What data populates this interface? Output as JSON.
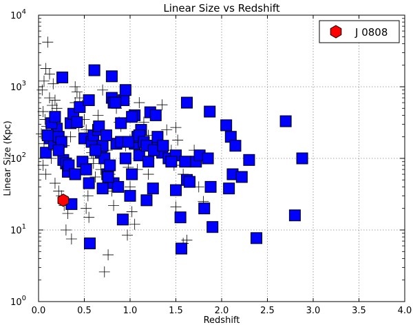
{
  "chart_data": {
    "type": "scatter",
    "title": "Linear Size vs Redshift",
    "xlabel": "Redshift",
    "ylabel": "Linear Size (Kpc)",
    "xlim": [
      0.0,
      4.0
    ],
    "ylim": [
      1,
      10000
    ],
    "yscale": "log",
    "grid": true,
    "legend_position": "top-right",
    "x_ticks": [
      "0.0",
      "0.5",
      "1.0",
      "1.5",
      "2.0",
      "2.5",
      "3.0",
      "3.5",
      "4.0"
    ],
    "y_ticks": [
      {
        "base": "10",
        "exp": "0"
      },
      {
        "base": "10",
        "exp": "1"
      },
      {
        "base": "10",
        "exp": "2"
      },
      {
        "base": "10",
        "exp": "3"
      },
      {
        "base": "10",
        "exp": "4"
      }
    ],
    "colors": {
      "squares": "#0000ff",
      "highlight": "#ff0000",
      "grid": "#888888"
    },
    "series": [
      {
        "name": "J 0808",
        "marker": "hexagon",
        "color": "#ff0000",
        "points": [
          [
            0.27,
            26
          ]
        ]
      },
      {
        "name": "blue squares",
        "marker": "square",
        "color": "#0000ff",
        "points": [
          [
            0.08,
            120
          ],
          [
            0.12,
            190
          ],
          [
            0.17,
            160
          ],
          [
            0.2,
            260
          ],
          [
            0.22,
            200
          ],
          [
            0.25,
            170
          ],
          [
            0.26,
            1350
          ],
          [
            0.27,
            95
          ],
          [
            0.3,
            85
          ],
          [
            0.32,
            65
          ],
          [
            0.33,
            80
          ],
          [
            0.35,
            310
          ],
          [
            0.36,
            23
          ],
          [
            0.38,
            420
          ],
          [
            0.4,
            60
          ],
          [
            0.45,
            520
          ],
          [
            0.48,
            90
          ],
          [
            0.5,
            190
          ],
          [
            0.52,
            70
          ],
          [
            0.55,
            650
          ],
          [
            0.55,
            45
          ],
          [
            0.56,
            6.5
          ],
          [
            0.58,
            170
          ],
          [
            0.6,
            210
          ],
          [
            0.61,
            1700
          ],
          [
            0.65,
            250
          ],
          [
            0.68,
            120
          ],
          [
            0.7,
            38
          ],
          [
            0.7,
            150
          ],
          [
            0.72,
            100
          ],
          [
            0.75,
            60
          ],
          [
            0.78,
            80
          ],
          [
            0.8,
            1400
          ],
          [
            0.8,
            700
          ],
          [
            0.82,
            600
          ],
          [
            0.82,
            45
          ],
          [
            0.85,
            160
          ],
          [
            0.87,
            40
          ],
          [
            0.9,
            310
          ],
          [
            0.92,
            14
          ],
          [
            0.93,
            650
          ],
          [
            0.95,
            900
          ],
          [
            0.95,
            100
          ],
          [
            1.0,
            30
          ],
          [
            1.02,
            60
          ],
          [
            1.05,
            400
          ],
          [
            1.05,
            160
          ],
          [
            1.08,
            200
          ],
          [
            1.1,
            110
          ],
          [
            1.12,
            250
          ],
          [
            1.18,
            26
          ],
          [
            1.2,
            90
          ],
          [
            1.22,
            440
          ],
          [
            1.25,
            150
          ],
          [
            1.25,
            38
          ],
          [
            1.28,
            400
          ],
          [
            1.3,
            200
          ],
          [
            1.32,
            130
          ],
          [
            1.35,
            120
          ],
          [
            1.42,
            100
          ],
          [
            1.5,
            110
          ],
          [
            1.5,
            36
          ],
          [
            1.55,
            15
          ],
          [
            1.56,
            5.5
          ],
          [
            1.6,
            90
          ],
          [
            1.62,
            600
          ],
          [
            1.62,
            50
          ],
          [
            1.65,
            47
          ],
          [
            1.72,
            90
          ],
          [
            1.76,
            110
          ],
          [
            1.81,
            20
          ],
          [
            1.85,
            100
          ],
          [
            1.87,
            450
          ],
          [
            1.88,
            40
          ],
          [
            1.9,
            11
          ],
          [
            2.05,
            290
          ],
          [
            2.08,
            38
          ],
          [
            2.1,
            200
          ],
          [
            2.12,
            60
          ],
          [
            2.15,
            150
          ],
          [
            2.22,
            55
          ],
          [
            2.3,
            95
          ],
          [
            2.38,
            7.7
          ],
          [
            2.7,
            330
          ],
          [
            2.8,
            16
          ],
          [
            2.88,
            100
          ],
          [
            0.1,
            210
          ],
          [
            0.14,
            310
          ],
          [
            0.18,
            380
          ],
          [
            0.22,
            130
          ],
          [
            0.42,
            320
          ],
          [
            0.62,
            130
          ],
          [
            0.66,
            280
          ],
          [
            0.74,
            210
          ],
          [
            0.76,
            55
          ],
          [
            0.84,
            600
          ],
          [
            0.9,
            170
          ],
          [
            0.98,
            170
          ],
          [
            1.02,
            380
          ],
          [
            1.1,
            210
          ],
          [
            1.15,
            170
          ],
          [
            1.18,
            150
          ],
          [
            1.26,
            130
          ],
          [
            1.36,
            150
          ],
          [
            1.45,
            90
          ]
        ]
      },
      {
        "name": "crosses",
        "marker": "plus",
        "color": "#000000",
        "points": [
          [
            0.1,
            4200
          ],
          [
            0.08,
            1800
          ],
          [
            0.06,
            1200
          ],
          [
            0.04,
            900
          ],
          [
            0.12,
            700
          ],
          [
            0.15,
            550
          ],
          [
            0.18,
            650
          ],
          [
            0.05,
            450
          ],
          [
            0.07,
            350
          ],
          [
            0.09,
            280
          ],
          [
            0.03,
            220
          ],
          [
            0.06,
            160
          ],
          [
            0.11,
            130
          ],
          [
            0.14,
            100
          ],
          [
            0.05,
            80
          ],
          [
            0.08,
            60
          ],
          [
            0.18,
            45
          ],
          [
            0.22,
            35
          ],
          [
            0.25,
            30
          ],
          [
            0.28,
            22
          ],
          [
            0.32,
            17
          ],
          [
            0.3,
            10
          ],
          [
            0.36,
            7.5
          ],
          [
            0.4,
            1000
          ],
          [
            0.42,
            850
          ],
          [
            0.45,
            700
          ],
          [
            0.48,
            550
          ],
          [
            0.5,
            350
          ],
          [
            0.52,
            250
          ],
          [
            0.55,
            180
          ],
          [
            0.58,
            120
          ],
          [
            0.6,
            85
          ],
          [
            0.62,
            55
          ],
          [
            0.54,
            30
          ],
          [
            0.52,
            20
          ],
          [
            0.55,
            15
          ],
          [
            0.6,
            100
          ],
          [
            0.65,
            400
          ],
          [
            0.7,
            900
          ],
          [
            0.72,
            220
          ],
          [
            0.75,
            130
          ],
          [
            0.78,
            60
          ],
          [
            0.8,
            35
          ],
          [
            0.82,
            22
          ],
          [
            0.76,
            4.5
          ],
          [
            0.72,
            2.6
          ],
          [
            0.85,
            500
          ],
          [
            0.9,
            280
          ],
          [
            0.95,
            150
          ],
          [
            0.98,
            75
          ],
          [
            1.0,
            40
          ],
          [
            0.97,
            8.5
          ],
          [
            1.02,
            18
          ],
          [
            1.05,
            12
          ],
          [
            1.1,
            600
          ],
          [
            1.15,
            320
          ],
          [
            1.2,
            210
          ],
          [
            1.25,
            160
          ],
          [
            1.3,
            120
          ],
          [
            1.35,
            560
          ],
          [
            1.4,
            250
          ],
          [
            1.45,
            130
          ],
          [
            1.48,
            80
          ],
          [
            1.5,
            270
          ],
          [
            1.52,
            180
          ],
          [
            1.55,
            100
          ],
          [
            1.58,
            60
          ],
          [
            1.5,
            21
          ],
          [
            1.58,
            6.5
          ],
          [
            1.62,
            7.2
          ],
          [
            1.7,
            130
          ],
          [
            1.75,
            40
          ],
          [
            1.8,
            25
          ],
          [
            1.0,
            180
          ],
          [
            0.88,
            320
          ],
          [
            0.35,
            200
          ],
          [
            0.28,
            150
          ],
          [
            0.12,
            1500
          ],
          [
            0.16,
            1100
          ],
          [
            0.2,
            500
          ],
          [
            0.4,
            600
          ],
          [
            0.44,
            280
          ],
          [
            0.68,
            70
          ],
          [
            1.08,
            70
          ],
          [
            1.2,
            60
          ]
        ]
      }
    ]
  }
}
